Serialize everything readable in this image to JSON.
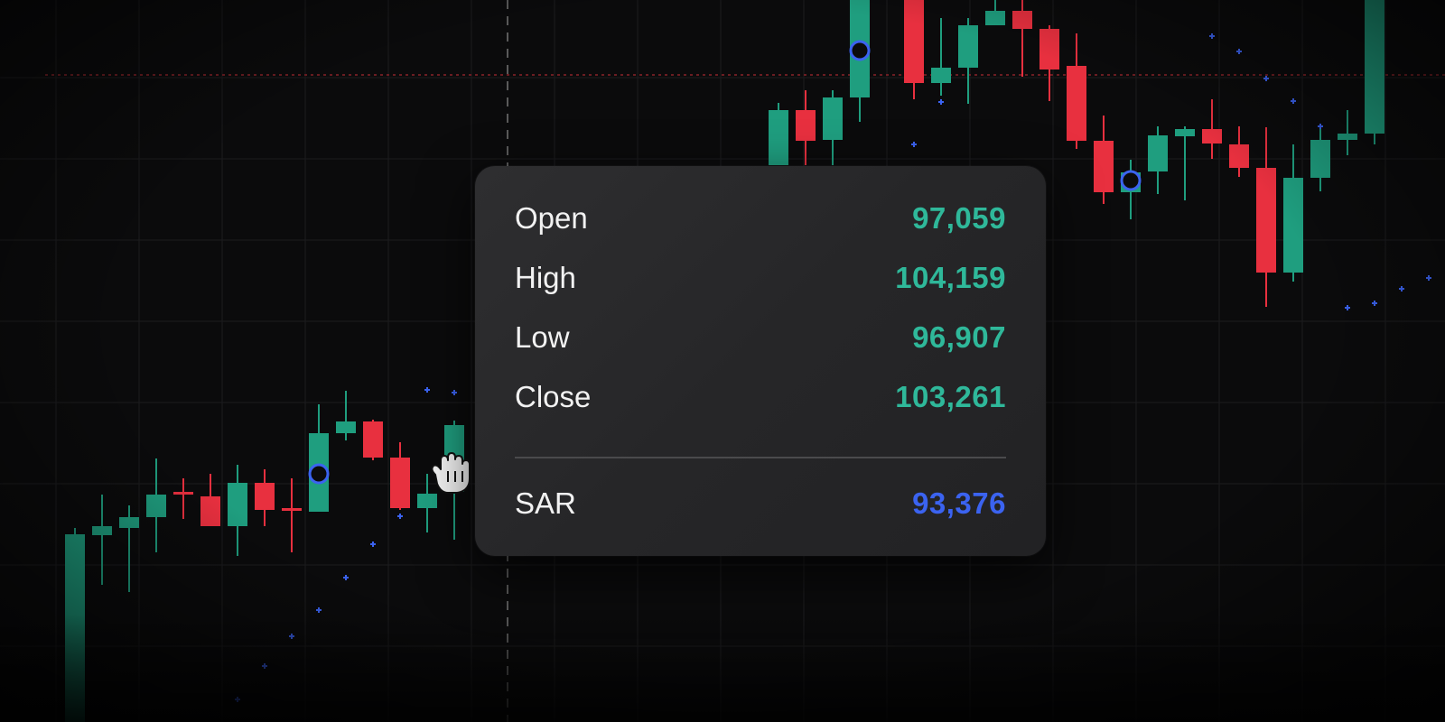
{
  "tooltip": {
    "rows": [
      {
        "label": "Open",
        "value": "97,059"
      },
      {
        "label": "High",
        "value": "104,159"
      },
      {
        "label": "Low",
        "value": "96,907"
      },
      {
        "label": "Close",
        "value": "103,261"
      }
    ],
    "indicator": {
      "label": "SAR",
      "value": "93,376"
    }
  },
  "colors": {
    "up": "#1f9e7f",
    "down": "#e8303f",
    "value_text": "#2fb89a",
    "sar": "#3b63f0",
    "background": "#0b0b0c"
  },
  "cursor": {
    "icon": "grab-hand-icon"
  }
}
